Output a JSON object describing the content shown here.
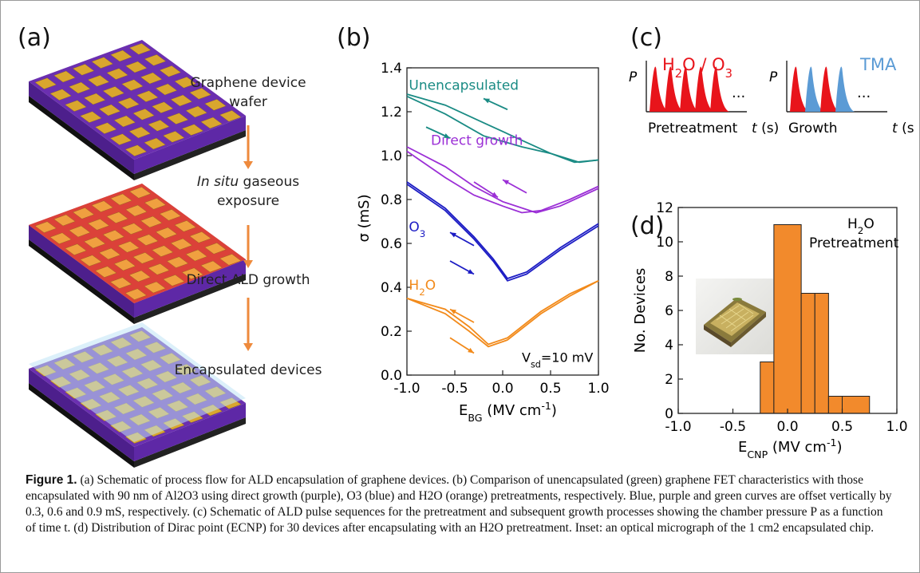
{
  "figure": {
    "panel_labels": [
      "(a)",
      "(b)",
      "(c)",
      "(d)"
    ],
    "flow_steps": [
      {
        "text": "Graphene device wafer"
      },
      {
        "prefix": "In situ",
        "text": " gaseous exposure"
      },
      {
        "text": "Direct ALD growth"
      },
      {
        "text": "Encapsulated devices"
      }
    ],
    "caption": {
      "label": "Figure 1.",
      "text": "(a) Schematic of process flow for ALD encapsulation of graphene devices. (b) Comparison of unencapsulated (green) graphene FET characteristics with those encapsulated with 90 nm of Al2O3 using direct growth (purple), O3 (blue) and H2O (orange) pretreatments, respectively. Blue, purple and green curves are offset vertically by 0.3, 0.6 and 0.9 mS, respectively. (c) Schematic of ALD pulse sequences for the pretreatment and subsequent growth processes showing the chamber pressure P as a function of time t. (d) Distribution of Dirac point (ECNP) for 30 devices after encapsulating with an H2O pretreatment. Inset: an optical micrograph of the 1 cm2 encapsulated chip."
    },
    "colors": {
      "unencapsulated": "#1a8b84",
      "direct_growth": "#9b2fd6",
      "o3": "#1c1cc4",
      "h2o": "#f28a1a",
      "pulse_red": "#e8141b",
      "pulse_blue": "#5b9bd5",
      "hist_bar": "#f28a2c",
      "arrow": "#ee8a3c",
      "wafer_purple": "#6b2fb0"
    }
  },
  "chart_data": [
    {
      "type": "line",
      "panel": "(b)",
      "xlabel": "E_BG (MV cm^-1)",
      "ylabel": "σ (mS)",
      "xlim": [
        -1.0,
        1.0
      ],
      "ylim": [
        0.0,
        1.4
      ],
      "xticks": [
        "-1.0",
        "-0.5",
        "0.0",
        "0.5",
        "1.0"
      ],
      "yticks": [
        "0.0",
        "0.2",
        "0.4",
        "0.6",
        "0.8",
        "1.0",
        "1.2",
        "1.4"
      ],
      "annotation": "V_sd=10 mV",
      "series": [
        {
          "name": "Unencapsulated",
          "color": "#1a8b84",
          "forward": [
            [
              -1.0,
              1.27
            ],
            [
              -0.6,
              1.19
            ],
            [
              -0.2,
              1.09
            ],
            [
              0.2,
              1.04
            ],
            [
              0.5,
              1.01
            ],
            [
              0.75,
              0.97
            ],
            [
              1.0,
              0.98
            ]
          ],
          "reverse": [
            [
              -1.0,
              1.28
            ],
            [
              -0.6,
              1.23
            ],
            [
              -0.2,
              1.15
            ],
            [
              0.2,
              1.07
            ],
            [
              0.5,
              1.01
            ],
            [
              0.8,
              0.97
            ],
            [
              1.0,
              0.98
            ]
          ]
        },
        {
          "name": "Direct growth",
          "color": "#9b2fd6",
          "forward": [
            [
              -1.0,
              1.02
            ],
            [
              -0.6,
              0.9
            ],
            [
              -0.3,
              0.82
            ],
            [
              0.0,
              0.77
            ],
            [
              0.2,
              0.74
            ],
            [
              0.4,
              0.75
            ],
            [
              0.7,
              0.8
            ],
            [
              1.0,
              0.86
            ]
          ],
          "reverse": [
            [
              -1.0,
              1.04
            ],
            [
              -0.6,
              0.95
            ],
            [
              -0.3,
              0.86
            ],
            [
              0.0,
              0.79
            ],
            [
              0.35,
              0.74
            ],
            [
              0.6,
              0.77
            ],
            [
              1.0,
              0.85
            ]
          ]
        },
        {
          "name": "O3",
          "color": "#1c1cc4",
          "forward": [
            [
              -1.0,
              0.87
            ],
            [
              -0.6,
              0.75
            ],
            [
              -0.3,
              0.62
            ],
            [
              -0.1,
              0.52
            ],
            [
              0.05,
              0.43
            ],
            [
              0.25,
              0.46
            ],
            [
              0.6,
              0.57
            ],
            [
              1.0,
              0.68
            ]
          ],
          "reverse": [
            [
              -1.0,
              0.88
            ],
            [
              -0.6,
              0.76
            ],
            [
              -0.3,
              0.63
            ],
            [
              -0.1,
              0.53
            ],
            [
              0.05,
              0.44
            ],
            [
              0.25,
              0.47
            ],
            [
              0.6,
              0.58
            ],
            [
              1.0,
              0.69
            ]
          ]
        },
        {
          "name": "H2O",
          "color": "#f28a1a",
          "forward": [
            [
              -1.0,
              0.35
            ],
            [
              -0.6,
              0.28
            ],
            [
              -0.35,
              0.2
            ],
            [
              -0.15,
              0.13
            ],
            [
              0.05,
              0.16
            ],
            [
              0.4,
              0.28
            ],
            [
              0.7,
              0.36
            ],
            [
              1.0,
              0.43
            ]
          ],
          "reverse": [
            [
              -1.0,
              0.35
            ],
            [
              -0.6,
              0.3
            ],
            [
              -0.35,
              0.22
            ],
            [
              -0.15,
              0.14
            ],
            [
              0.05,
              0.17
            ],
            [
              0.4,
              0.29
            ],
            [
              0.7,
              0.37
            ],
            [
              1.0,
              0.43
            ]
          ]
        }
      ]
    },
    {
      "type": "line",
      "panel": "(c)",
      "subplots": [
        {
          "xlabel": "Pretreatment",
          "x_unit": "t (s)",
          "ylabel": "P",
          "title": "H2O / O3",
          "pulses": [
            "H2O/O3",
            "H2O/O3",
            "H2O/O3",
            "H2O/O3",
            "H2O/O3"
          ],
          "ellipsis": "..."
        },
        {
          "xlabel": "Growth",
          "x_unit": "t (s)",
          "ylabel": "P",
          "title": "TMA",
          "pulses": [
            "H2O",
            "TMA",
            "H2O",
            "TMA"
          ],
          "ellipsis": "..."
        }
      ]
    },
    {
      "type": "bar",
      "panel": "(d)",
      "xlabel": "E_CNP (MV cm^-1)",
      "ylabel": "No. Devices",
      "xlim": [
        -1.0,
        1.0
      ],
      "ylim": [
        0,
        12
      ],
      "xticks": [
        "-1.0",
        "-0.5",
        "0.0",
        "0.5",
        "1.0"
      ],
      "yticks": [
        "0",
        "2",
        "4",
        "6",
        "8",
        "10",
        "12"
      ],
      "bin_edges": [
        -0.25,
        0.0,
        0.25,
        0.5,
        0.75
      ],
      "bins": [
        {
          "x0": -0.25,
          "x1": -0.125,
          "count": 3
        },
        {
          "x0": -0.125,
          "x1": 0.125,
          "count": 11
        },
        {
          "x0": 0.125,
          "x1": 0.25,
          "count": 7
        },
        {
          "x0": 0.25,
          "x1": 0.375,
          "count": 7
        },
        {
          "x0": 0.375,
          "x1": 0.5,
          "count": 1
        },
        {
          "x0": 0.5,
          "x1": 0.75,
          "count": 1
        }
      ],
      "annotation": [
        "H2O",
        "Pretreatment"
      ]
    }
  ]
}
